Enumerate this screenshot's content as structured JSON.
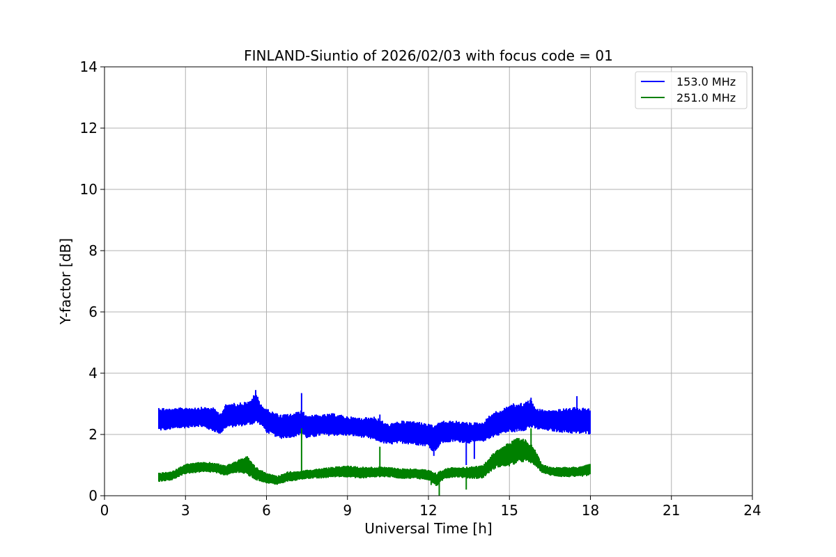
{
  "chart_data": {
    "type": "line",
    "title": "FINLAND-Siuntio of 2026/02/03 with focus code = 01",
    "xlabel": "Universal Time [h]",
    "ylabel": "Y-factor [dB]",
    "xlim": [
      0,
      24
    ],
    "ylim": [
      0,
      14
    ],
    "xticks": [
      0,
      3,
      6,
      9,
      12,
      15,
      18,
      21,
      24
    ],
    "yticks": [
      0,
      2,
      4,
      6,
      8,
      10,
      12,
      14
    ],
    "grid": true,
    "legend_position": "upper right",
    "series": [
      {
        "name": "153.0 MHz",
        "color": "#0000ff",
        "x": [
          2.0,
          2.5,
          3.0,
          3.5,
          4.0,
          4.3,
          4.5,
          5.0,
          5.4,
          5.6,
          5.8,
          6.0,
          6.5,
          7.0,
          7.3,
          7.5,
          8.0,
          8.5,
          9.0,
          9.5,
          10.0,
          10.5,
          11.0,
          11.5,
          12.0,
          12.2,
          12.5,
          13.0,
          13.5,
          14.0,
          14.4,
          14.7,
          15.0,
          15.5,
          15.8,
          16.0,
          16.5,
          17.0,
          17.5,
          18.0
        ],
        "low": [
          2.1,
          2.15,
          2.2,
          2.25,
          2.1,
          2.0,
          2.2,
          2.25,
          2.3,
          2.35,
          2.3,
          2.05,
          1.85,
          1.9,
          2.0,
          1.85,
          1.95,
          1.95,
          1.95,
          1.9,
          1.8,
          1.65,
          1.7,
          1.65,
          1.6,
          1.4,
          1.7,
          1.75,
          1.7,
          1.75,
          1.9,
          2.0,
          2.05,
          2.1,
          2.2,
          2.15,
          2.1,
          2.05,
          2.0,
          2.0
        ],
        "high": [
          2.9,
          2.85,
          2.9,
          2.9,
          2.9,
          2.7,
          3.0,
          3.05,
          3.1,
          3.4,
          3.0,
          2.85,
          2.65,
          2.7,
          2.8,
          2.65,
          2.65,
          2.7,
          2.6,
          2.55,
          2.6,
          2.35,
          2.45,
          2.45,
          2.35,
          2.3,
          2.45,
          2.45,
          2.4,
          2.4,
          2.75,
          2.8,
          3.0,
          3.05,
          3.15,
          2.85,
          2.8,
          2.85,
          2.9,
          2.85
        ],
        "spikes": [
          [
            5.6,
            3.45
          ],
          [
            7.3,
            3.35
          ],
          [
            7.3,
            2.15
          ],
          [
            10.2,
            2.65
          ],
          [
            12.1,
            1.5
          ],
          [
            12.2,
            1.3
          ],
          [
            13.4,
            1.0
          ],
          [
            13.7,
            1.2
          ],
          [
            15.8,
            3.2
          ],
          [
            17.5,
            3.25
          ]
        ]
      },
      {
        "name": "251.0 MHz",
        "color": "#008000",
        "x": [
          2.0,
          2.5,
          3.0,
          3.5,
          4.0,
          4.5,
          5.0,
          5.3,
          5.6,
          6.0,
          6.4,
          6.8,
          7.2,
          7.5,
          8.0,
          8.5,
          9.0,
          9.5,
          10.0,
          10.5,
          11.0,
          11.5,
          12.0,
          12.3,
          12.6,
          13.0,
          13.5,
          14.0,
          14.2,
          14.5,
          15.0,
          15.3,
          15.6,
          15.9,
          16.2,
          16.5,
          17.0,
          17.5,
          18.0
        ],
        "low": [
          0.45,
          0.5,
          0.7,
          0.75,
          0.75,
          0.65,
          0.75,
          0.65,
          0.5,
          0.4,
          0.35,
          0.45,
          0.5,
          0.55,
          0.55,
          0.6,
          0.6,
          0.55,
          0.6,
          0.6,
          0.55,
          0.55,
          0.5,
          0.3,
          0.55,
          0.6,
          0.55,
          0.55,
          0.7,
          0.9,
          0.95,
          1.05,
          1.1,
          1.0,
          0.75,
          0.65,
          0.6,
          0.6,
          0.65
        ],
        "high": [
          0.75,
          0.8,
          1.05,
          1.1,
          1.1,
          1.0,
          1.2,
          1.3,
          0.95,
          0.75,
          0.65,
          0.8,
          0.8,
          0.85,
          0.9,
          0.95,
          1.0,
          0.95,
          0.95,
          0.95,
          0.9,
          0.9,
          0.85,
          0.75,
          0.9,
          0.95,
          0.95,
          1.0,
          1.2,
          1.5,
          1.75,
          1.9,
          1.85,
          1.6,
          1.05,
          0.95,
          0.95,
          0.95,
          1.05
        ],
        "spikes": [
          [
            7.3,
            2.2
          ],
          [
            10.2,
            1.6
          ],
          [
            12.4,
            0.0
          ],
          [
            13.4,
            0.2
          ],
          [
            15.8,
            2.2
          ],
          [
            12.1,
            0.35
          ]
        ]
      }
    ]
  }
}
